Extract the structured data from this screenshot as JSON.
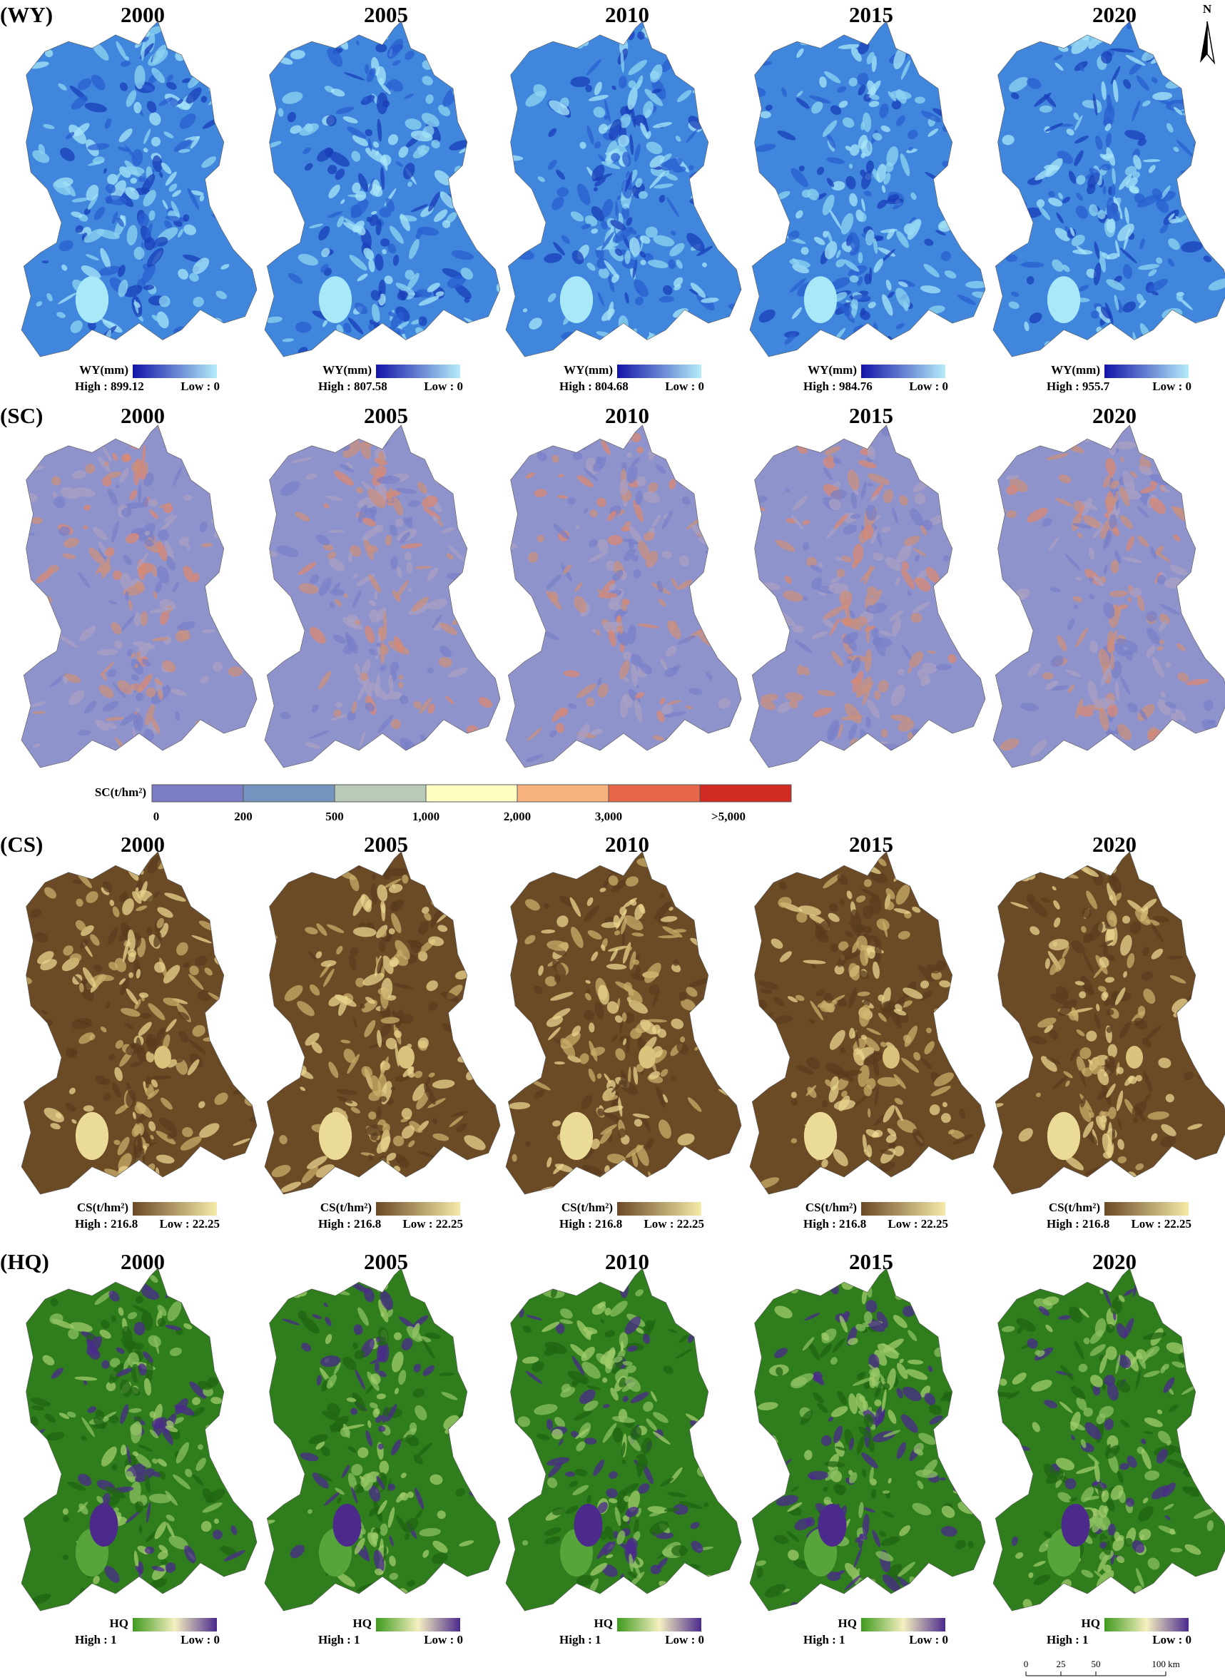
{
  "north": "N",
  "scale_bar": {
    "labels": [
      "0",
      "25",
      "50",
      "100 km"
    ]
  },
  "rows": [
    {
      "label": "(WY)",
      "legend_title": "WY(mm)",
      "colors": [
        "#1414a8",
        "#b4ecfa"
      ],
      "maps": [
        {
          "year": "2000",
          "high": "High : 899.12",
          "low": "Low : 0"
        },
        {
          "year": "2005",
          "high": "High : 807.58",
          "low": "Low : 0"
        },
        {
          "year": "2010",
          "high": "High : 804.68",
          "low": "Low : 0"
        },
        {
          "year": "2015",
          "high": "High : 984.76",
          "low": "Low : 0"
        },
        {
          "year": "2020",
          "high": "High : 955.7",
          "low": "Low : 0"
        }
      ]
    },
    {
      "label": "(SC)",
      "legend_title": "SC(t/hm²)",
      "classes": {
        "colors": [
          "#7b7dc4",
          "#7594bf",
          "#b8cab8",
          "#ffffc4",
          "#f8b27d",
          "#e8664a",
          "#d12b24"
        ],
        "labels": [
          "0",
          "200",
          "500",
          "1,000",
          "2,000",
          "3,000",
          ">5,000"
        ]
      },
      "maps": [
        {
          "year": "2000"
        },
        {
          "year": "2005"
        },
        {
          "year": "2010"
        },
        {
          "year": "2015"
        },
        {
          "year": "2020"
        }
      ]
    },
    {
      "label": "(CS)",
      "legend_title": "CS(t/hm²)",
      "colors": [
        "#6b4a26",
        "#f5eaa8"
      ],
      "maps": [
        {
          "year": "2000",
          "high": "High : 216.8",
          "low": "Low : 22.25"
        },
        {
          "year": "2005",
          "high": "High : 216.8",
          "low": "Low : 22.25"
        },
        {
          "year": "2010",
          "high": "High : 216.8",
          "low": "Low : 22.25"
        },
        {
          "year": "2015",
          "high": "High : 216.8",
          "low": "Low : 22.25"
        },
        {
          "year": "2020",
          "high": "High : 216.8",
          "low": "Low : 22.25"
        }
      ]
    },
    {
      "label": "(HQ)",
      "legend_title": "HQ",
      "colors": [
        "#3f9a1e",
        "#f5f0c0",
        "#4b2a8c"
      ],
      "maps": [
        {
          "year": "2000",
          "high": "High : 1",
          "low": "Low : 0"
        },
        {
          "year": "2005",
          "high": "High : 1",
          "low": "Low : 0"
        },
        {
          "year": "2010",
          "high": "High : 1",
          "low": "Low : 0"
        },
        {
          "year": "2015",
          "high": "High : 1",
          "low": "Low : 0"
        },
        {
          "year": "2020",
          "high": "High : 1",
          "low": "Low : 0"
        }
      ]
    }
  ]
}
